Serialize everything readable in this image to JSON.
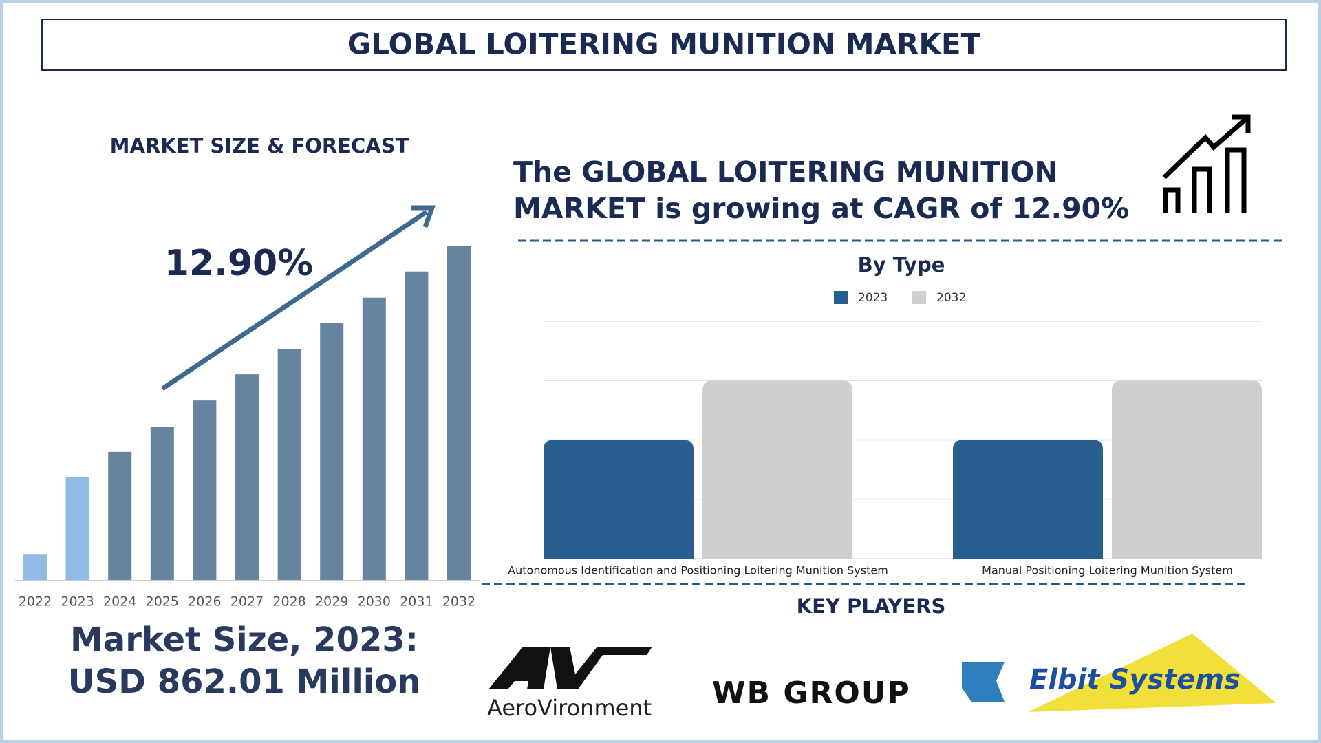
{
  "header": {
    "title": "GLOBAL LOITERING MUNITION MARKET"
  },
  "headline": [
    "The GLOBAL LOITERING MUNITION",
    "MARKET is growing at CAGR of 12.90%"
  ],
  "market_size": [
    "Market Size, 2023:",
    "USD 862.01 Million"
  ],
  "chart_data": [
    {
      "type": "bar",
      "title": "MARKET SIZE & FORECAST",
      "annotation": "12.90%",
      "categories": [
        "2022",
        "2023",
        "2024",
        "2025",
        "2026",
        "2027",
        "2028",
        "2029",
        "2030",
        "2031",
        "2032"
      ],
      "values": [
        212,
        862,
        1074,
        1286,
        1505,
        1724,
        1936,
        2155,
        2367,
        2586,
        2798
      ],
      "colors": [
        "#8fbae3",
        "#8fbae3",
        "#66849f",
        "#66849f",
        "#66849f",
        "#66849f",
        "#66849f",
        "#66849f",
        "#66849f",
        "#66849f",
        "#66849f"
      ]
    },
    {
      "type": "bar",
      "title": "By Type",
      "categories": [
        "Autonomous Identification and Positioning Loitering Munition System",
        "Manual Positioning Loitering Munition System"
      ],
      "series": [
        {
          "name": "2023",
          "color": "#285f8f",
          "values": [
            2,
            2
          ]
        },
        {
          "name": "2032",
          "color": "#cfcfcf",
          "values": [
            3,
            3
          ]
        }
      ],
      "ylim": [
        0,
        4
      ],
      "yticks": [
        0,
        1,
        2,
        3,
        4
      ],
      "grid": true,
      "legend": "top"
    }
  ],
  "key_players": {
    "title": "KEY PLAYERS",
    "names": [
      "AeroVironment",
      "WB GROUP",
      "Elbit Systems"
    ]
  }
}
